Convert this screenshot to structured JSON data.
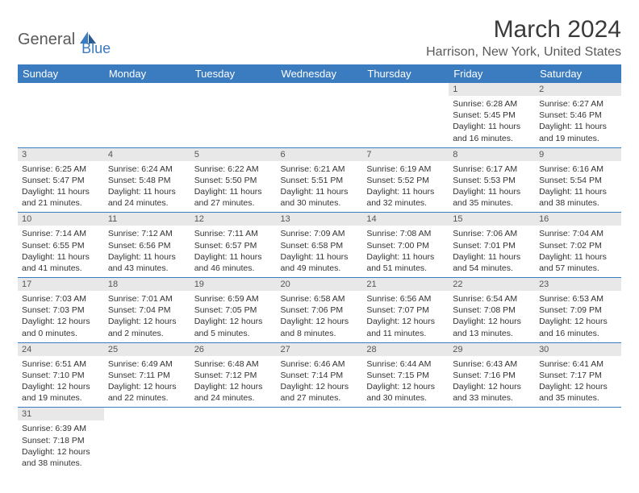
{
  "logo": {
    "part1": "General",
    "part2": "Blue"
  },
  "title": "March 2024",
  "location": "Harrison, New York, United States",
  "colors": {
    "header_bg": "#3b7bbf",
    "header_fg": "#ffffff",
    "daynum_bg": "#e8e8e8",
    "text": "#333333",
    "border": "#3b7bbf"
  },
  "fonts": {
    "title_size": 30,
    "location_size": 16,
    "header_size": 13,
    "cell_size": 10.5
  },
  "weekdays": [
    "Sunday",
    "Monday",
    "Tuesday",
    "Wednesday",
    "Thursday",
    "Friday",
    "Saturday"
  ],
  "weeks": [
    [
      null,
      null,
      null,
      null,
      null,
      {
        "n": "1",
        "sr": "Sunrise: 6:28 AM",
        "ss": "Sunset: 5:45 PM",
        "d1": "Daylight: 11 hours",
        "d2": "and 16 minutes."
      },
      {
        "n": "2",
        "sr": "Sunrise: 6:27 AM",
        "ss": "Sunset: 5:46 PM",
        "d1": "Daylight: 11 hours",
        "d2": "and 19 minutes."
      }
    ],
    [
      {
        "n": "3",
        "sr": "Sunrise: 6:25 AM",
        "ss": "Sunset: 5:47 PM",
        "d1": "Daylight: 11 hours",
        "d2": "and 21 minutes."
      },
      {
        "n": "4",
        "sr": "Sunrise: 6:24 AM",
        "ss": "Sunset: 5:48 PM",
        "d1": "Daylight: 11 hours",
        "d2": "and 24 minutes."
      },
      {
        "n": "5",
        "sr": "Sunrise: 6:22 AM",
        "ss": "Sunset: 5:50 PM",
        "d1": "Daylight: 11 hours",
        "d2": "and 27 minutes."
      },
      {
        "n": "6",
        "sr": "Sunrise: 6:21 AM",
        "ss": "Sunset: 5:51 PM",
        "d1": "Daylight: 11 hours",
        "d2": "and 30 minutes."
      },
      {
        "n": "7",
        "sr": "Sunrise: 6:19 AM",
        "ss": "Sunset: 5:52 PM",
        "d1": "Daylight: 11 hours",
        "d2": "and 32 minutes."
      },
      {
        "n": "8",
        "sr": "Sunrise: 6:17 AM",
        "ss": "Sunset: 5:53 PM",
        "d1": "Daylight: 11 hours",
        "d2": "and 35 minutes."
      },
      {
        "n": "9",
        "sr": "Sunrise: 6:16 AM",
        "ss": "Sunset: 5:54 PM",
        "d1": "Daylight: 11 hours",
        "d2": "and 38 minutes."
      }
    ],
    [
      {
        "n": "10",
        "sr": "Sunrise: 7:14 AM",
        "ss": "Sunset: 6:55 PM",
        "d1": "Daylight: 11 hours",
        "d2": "and 41 minutes."
      },
      {
        "n": "11",
        "sr": "Sunrise: 7:12 AM",
        "ss": "Sunset: 6:56 PM",
        "d1": "Daylight: 11 hours",
        "d2": "and 43 minutes."
      },
      {
        "n": "12",
        "sr": "Sunrise: 7:11 AM",
        "ss": "Sunset: 6:57 PM",
        "d1": "Daylight: 11 hours",
        "d2": "and 46 minutes."
      },
      {
        "n": "13",
        "sr": "Sunrise: 7:09 AM",
        "ss": "Sunset: 6:58 PM",
        "d1": "Daylight: 11 hours",
        "d2": "and 49 minutes."
      },
      {
        "n": "14",
        "sr": "Sunrise: 7:08 AM",
        "ss": "Sunset: 7:00 PM",
        "d1": "Daylight: 11 hours",
        "d2": "and 51 minutes."
      },
      {
        "n": "15",
        "sr": "Sunrise: 7:06 AM",
        "ss": "Sunset: 7:01 PM",
        "d1": "Daylight: 11 hours",
        "d2": "and 54 minutes."
      },
      {
        "n": "16",
        "sr": "Sunrise: 7:04 AM",
        "ss": "Sunset: 7:02 PM",
        "d1": "Daylight: 11 hours",
        "d2": "and 57 minutes."
      }
    ],
    [
      {
        "n": "17",
        "sr": "Sunrise: 7:03 AM",
        "ss": "Sunset: 7:03 PM",
        "d1": "Daylight: 12 hours",
        "d2": "and 0 minutes."
      },
      {
        "n": "18",
        "sr": "Sunrise: 7:01 AM",
        "ss": "Sunset: 7:04 PM",
        "d1": "Daylight: 12 hours",
        "d2": "and 2 minutes."
      },
      {
        "n": "19",
        "sr": "Sunrise: 6:59 AM",
        "ss": "Sunset: 7:05 PM",
        "d1": "Daylight: 12 hours",
        "d2": "and 5 minutes."
      },
      {
        "n": "20",
        "sr": "Sunrise: 6:58 AM",
        "ss": "Sunset: 7:06 PM",
        "d1": "Daylight: 12 hours",
        "d2": "and 8 minutes."
      },
      {
        "n": "21",
        "sr": "Sunrise: 6:56 AM",
        "ss": "Sunset: 7:07 PM",
        "d1": "Daylight: 12 hours",
        "d2": "and 11 minutes."
      },
      {
        "n": "22",
        "sr": "Sunrise: 6:54 AM",
        "ss": "Sunset: 7:08 PM",
        "d1": "Daylight: 12 hours",
        "d2": "and 13 minutes."
      },
      {
        "n": "23",
        "sr": "Sunrise: 6:53 AM",
        "ss": "Sunset: 7:09 PM",
        "d1": "Daylight: 12 hours",
        "d2": "and 16 minutes."
      }
    ],
    [
      {
        "n": "24",
        "sr": "Sunrise: 6:51 AM",
        "ss": "Sunset: 7:10 PM",
        "d1": "Daylight: 12 hours",
        "d2": "and 19 minutes."
      },
      {
        "n": "25",
        "sr": "Sunrise: 6:49 AM",
        "ss": "Sunset: 7:11 PM",
        "d1": "Daylight: 12 hours",
        "d2": "and 22 minutes."
      },
      {
        "n": "26",
        "sr": "Sunrise: 6:48 AM",
        "ss": "Sunset: 7:12 PM",
        "d1": "Daylight: 12 hours",
        "d2": "and 24 minutes."
      },
      {
        "n": "27",
        "sr": "Sunrise: 6:46 AM",
        "ss": "Sunset: 7:14 PM",
        "d1": "Daylight: 12 hours",
        "d2": "and 27 minutes."
      },
      {
        "n": "28",
        "sr": "Sunrise: 6:44 AM",
        "ss": "Sunset: 7:15 PM",
        "d1": "Daylight: 12 hours",
        "d2": "and 30 minutes."
      },
      {
        "n": "29",
        "sr": "Sunrise: 6:43 AM",
        "ss": "Sunset: 7:16 PM",
        "d1": "Daylight: 12 hours",
        "d2": "and 33 minutes."
      },
      {
        "n": "30",
        "sr": "Sunrise: 6:41 AM",
        "ss": "Sunset: 7:17 PM",
        "d1": "Daylight: 12 hours",
        "d2": "and 35 minutes."
      }
    ],
    [
      {
        "n": "31",
        "sr": "Sunrise: 6:39 AM",
        "ss": "Sunset: 7:18 PM",
        "d1": "Daylight: 12 hours",
        "d2": "and 38 minutes."
      },
      null,
      null,
      null,
      null,
      null,
      null
    ]
  ]
}
